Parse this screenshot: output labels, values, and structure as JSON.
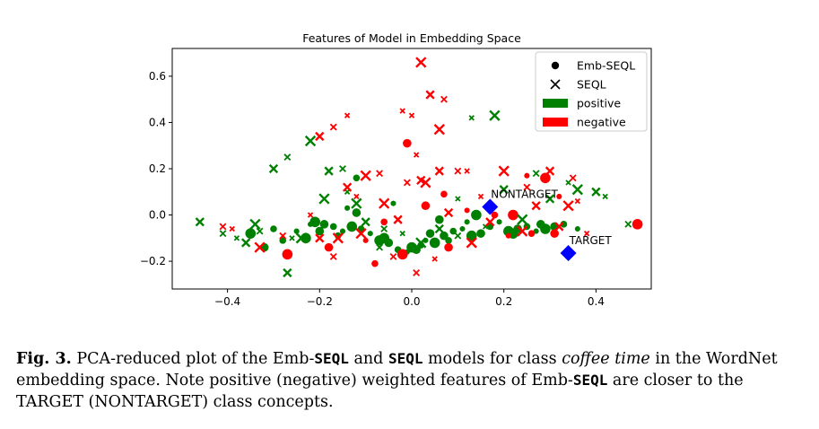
{
  "chart_data": {
    "type": "scatter",
    "title": "Features of Model in Embedding Space",
    "xlabel": "",
    "ylabel": "",
    "xlim": [
      -0.52,
      0.52
    ],
    "ylim": [
      -0.32,
      0.72
    ],
    "xticks": [
      -0.4,
      -0.2,
      0.0,
      0.2,
      0.4
    ],
    "xtick_labels": [
      "−0.4",
      "−0.2",
      "0.0",
      "0.2",
      "0.4"
    ],
    "yticks": [
      -0.2,
      0.0,
      0.2,
      0.4,
      0.6
    ],
    "ytick_labels": [
      "−0.2",
      "0.0",
      "0.2",
      "0.4",
      "0.6"
    ],
    "grid": false,
    "legend_position": "top-right",
    "legend": [
      {
        "label": "Emb-SEQL",
        "marker": "dot"
      },
      {
        "label": "SEQL",
        "marker": "x"
      },
      {
        "label": "positive",
        "marker": "patch",
        "color": "#008000"
      },
      {
        "label": "negative",
        "marker": "patch",
        "color": "#ff0000"
      }
    ],
    "colors": {
      "positive": "#008000",
      "negative": "#ff0000",
      "class": "#0000ff"
    },
    "class_points": [
      {
        "label": "NONTARGET",
        "x": 0.17,
        "y": 0.035
      },
      {
        "label": "TARGET",
        "x": 0.34,
        "y": -0.165
      }
    ],
    "series": [
      {
        "model": "Emb-SEQL",
        "sign": "positive",
        "points": [
          [
            -0.22,
            -0.04
          ],
          [
            -0.21,
            -0.03
          ],
          [
            -0.19,
            -0.04
          ],
          [
            -0.17,
            -0.05
          ],
          [
            -0.15,
            -0.07
          ],
          [
            -0.13,
            -0.05
          ],
          [
            -0.12,
            0.01
          ],
          [
            -0.11,
            -0.06
          ],
          [
            -0.09,
            -0.08
          ],
          [
            -0.07,
            -0.11
          ],
          [
            -0.05,
            -0.12
          ],
          [
            -0.03,
            -0.15
          ],
          [
            -0.01,
            -0.16
          ],
          [
            0.0,
            -0.14
          ],
          [
            0.01,
            -0.15
          ],
          [
            0.02,
            -0.13
          ],
          [
            0.03,
            -0.11
          ],
          [
            0.05,
            -0.12
          ],
          [
            0.07,
            -0.09
          ],
          [
            0.09,
            -0.07
          ],
          [
            0.11,
            -0.06
          ],
          [
            0.13,
            -0.09
          ],
          [
            0.15,
            -0.08
          ],
          [
            0.17,
            -0.05
          ],
          [
            0.19,
            -0.03
          ],
          [
            0.21,
            -0.07
          ],
          [
            0.23,
            -0.06
          ],
          [
            0.25,
            -0.05
          ],
          [
            0.27,
            -0.07
          ],
          [
            0.29,
            -0.06
          ],
          [
            0.31,
            -0.05
          ],
          [
            0.33,
            -0.04
          ],
          [
            0.36,
            -0.06
          ],
          [
            -0.35,
            -0.08
          ],
          [
            -0.32,
            -0.14
          ],
          [
            -0.28,
            -0.11
          ],
          [
            -0.25,
            -0.07
          ],
          [
            -0.23,
            -0.1
          ],
          [
            -0.2,
            -0.07
          ],
          [
            -0.16,
            -0.09
          ],
          [
            -0.14,
            0.03
          ],
          [
            -0.06,
            -0.1
          ],
          [
            0.04,
            -0.08
          ],
          [
            0.08,
            -0.11
          ],
          [
            0.12,
            -0.03
          ],
          [
            0.14,
            0.0
          ],
          [
            0.06,
            -0.02
          ],
          [
            -0.12,
            0.16
          ],
          [
            -0.04,
            0.05
          ],
          [
            0.22,
            -0.08
          ],
          [
            0.28,
            -0.04
          ],
          [
            -0.3,
            -0.06
          ]
        ]
      },
      {
        "model": "Emb-SEQL",
        "sign": "negative",
        "points": [
          [
            0.49,
            -0.04
          ],
          [
            0.31,
            -0.08
          ],
          [
            0.26,
            -0.08
          ],
          [
            0.25,
            0.17
          ],
          [
            0.22,
            0.0
          ],
          [
            -0.01,
            0.31
          ],
          [
            -0.08,
            -0.21
          ],
          [
            -0.1,
            -0.11
          ],
          [
            -0.02,
            -0.17
          ],
          [
            0.08,
            -0.14
          ],
          [
            0.18,
            0.0
          ],
          [
            0.32,
            0.08
          ],
          [
            0.29,
            0.16
          ],
          [
            -0.18,
            -0.14
          ],
          [
            0.07,
            0.09
          ],
          [
            0.21,
            -0.09
          ],
          [
            -0.27,
            -0.17
          ],
          [
            0.03,
            0.04
          ],
          [
            -0.06,
            -0.03
          ],
          [
            0.12,
            0.02
          ]
        ]
      },
      {
        "model": "SEQL",
        "sign": "positive",
        "points": [
          [
            -0.46,
            -0.03
          ],
          [
            -0.41,
            -0.08
          ],
          [
            -0.38,
            -0.1
          ],
          [
            -0.34,
            -0.04
          ],
          [
            -0.3,
            0.2
          ],
          [
            -0.27,
            0.25
          ],
          [
            -0.26,
            -0.1
          ],
          [
            -0.22,
            0.32
          ],
          [
            -0.18,
            0.19
          ],
          [
            -0.15,
            0.2
          ],
          [
            -0.14,
            0.1
          ],
          [
            -0.19,
            0.07
          ],
          [
            -0.1,
            -0.03
          ],
          [
            -0.06,
            -0.06
          ],
          [
            -0.02,
            -0.08
          ],
          [
            0.02,
            -0.12
          ],
          [
            0.06,
            -0.06
          ],
          [
            0.1,
            -0.09
          ],
          [
            0.13,
            0.42
          ],
          [
            0.18,
            0.43
          ],
          [
            0.2,
            0.11
          ],
          [
            0.27,
            0.18
          ],
          [
            0.34,
            0.14
          ],
          [
            0.36,
            0.11
          ],
          [
            0.4,
            0.1
          ],
          [
            0.47,
            -0.04
          ],
          [
            0.42,
            0.08
          ],
          [
            -0.24,
            -0.1
          ],
          [
            -0.27,
            -0.25
          ],
          [
            -0.07,
            -0.14
          ],
          [
            0.16,
            -0.05
          ],
          [
            0.24,
            -0.02
          ],
          [
            0.3,
            0.07
          ],
          [
            -0.33,
            -0.07
          ],
          [
            0.1,
            0.07
          ],
          [
            -0.12,
            0.05
          ],
          [
            -0.36,
            -0.12
          ]
        ]
      },
      {
        "model": "SEQL",
        "sign": "negative",
        "points": [
          [
            -0.41,
            -0.05
          ],
          [
            -0.39,
            -0.06
          ],
          [
            -0.33,
            -0.14
          ],
          [
            -0.2,
            0.34
          ],
          [
            -0.17,
            0.38
          ],
          [
            -0.14,
            0.43
          ],
          [
            -0.1,
            0.17
          ],
          [
            -0.14,
            0.12
          ],
          [
            -0.07,
            0.18
          ],
          [
            -0.02,
            0.45
          ],
          [
            0.02,
            0.66
          ],
          [
            0.04,
            0.52
          ],
          [
            0.07,
            0.5
          ],
          [
            0.0,
            0.43
          ],
          [
            0.06,
            0.37
          ],
          [
            0.02,
            0.15
          ],
          [
            -0.01,
            0.14
          ],
          [
            0.01,
            0.26
          ],
          [
            0.03,
            0.14
          ],
          [
            0.06,
            0.19
          ],
          [
            0.1,
            0.19
          ],
          [
            0.12,
            0.19
          ],
          [
            0.2,
            0.19
          ],
          [
            0.3,
            0.19
          ],
          [
            0.35,
            0.16
          ],
          [
            0.36,
            0.06
          ],
          [
            0.34,
            0.04
          ],
          [
            0.27,
            0.04
          ],
          [
            0.25,
            0.12
          ],
          [
            0.15,
            0.08
          ],
          [
            -0.06,
            0.05
          ],
          [
            -0.03,
            -0.02
          ],
          [
            0.01,
            -0.25
          ],
          [
            0.05,
            -0.19
          ],
          [
            -0.11,
            -0.08
          ],
          [
            -0.2,
            -0.1
          ],
          [
            -0.17,
            -0.18
          ],
          [
            -0.12,
            0.08
          ],
          [
            0.13,
            -0.12
          ],
          [
            0.17,
            -0.03
          ],
          [
            -0.28,
            -0.09
          ],
          [
            -0.22,
            0.0
          ],
          [
            -0.16,
            -0.1
          ],
          [
            0.08,
            0.01
          ],
          [
            -0.04,
            -0.18
          ],
          [
            0.38,
            -0.08
          ],
          [
            0.24,
            -0.07
          ],
          [
            0.32,
            -0.05
          ]
        ]
      }
    ]
  },
  "caption": {
    "fig_label": "Fig. 3.",
    "t1": " PCA-reduced plot of the Emb-",
    "m1": "SEQL",
    "t2": " and ",
    "m2": "SEQL",
    "t3": " models for class ",
    "i1": "coffee time",
    "t4": " in the WordNet embedding space. Note positive (negative) weighted features of Emb-",
    "m3": "SEQL",
    "t5": " are closer to the TARGET (NONTARGET) class concepts."
  }
}
